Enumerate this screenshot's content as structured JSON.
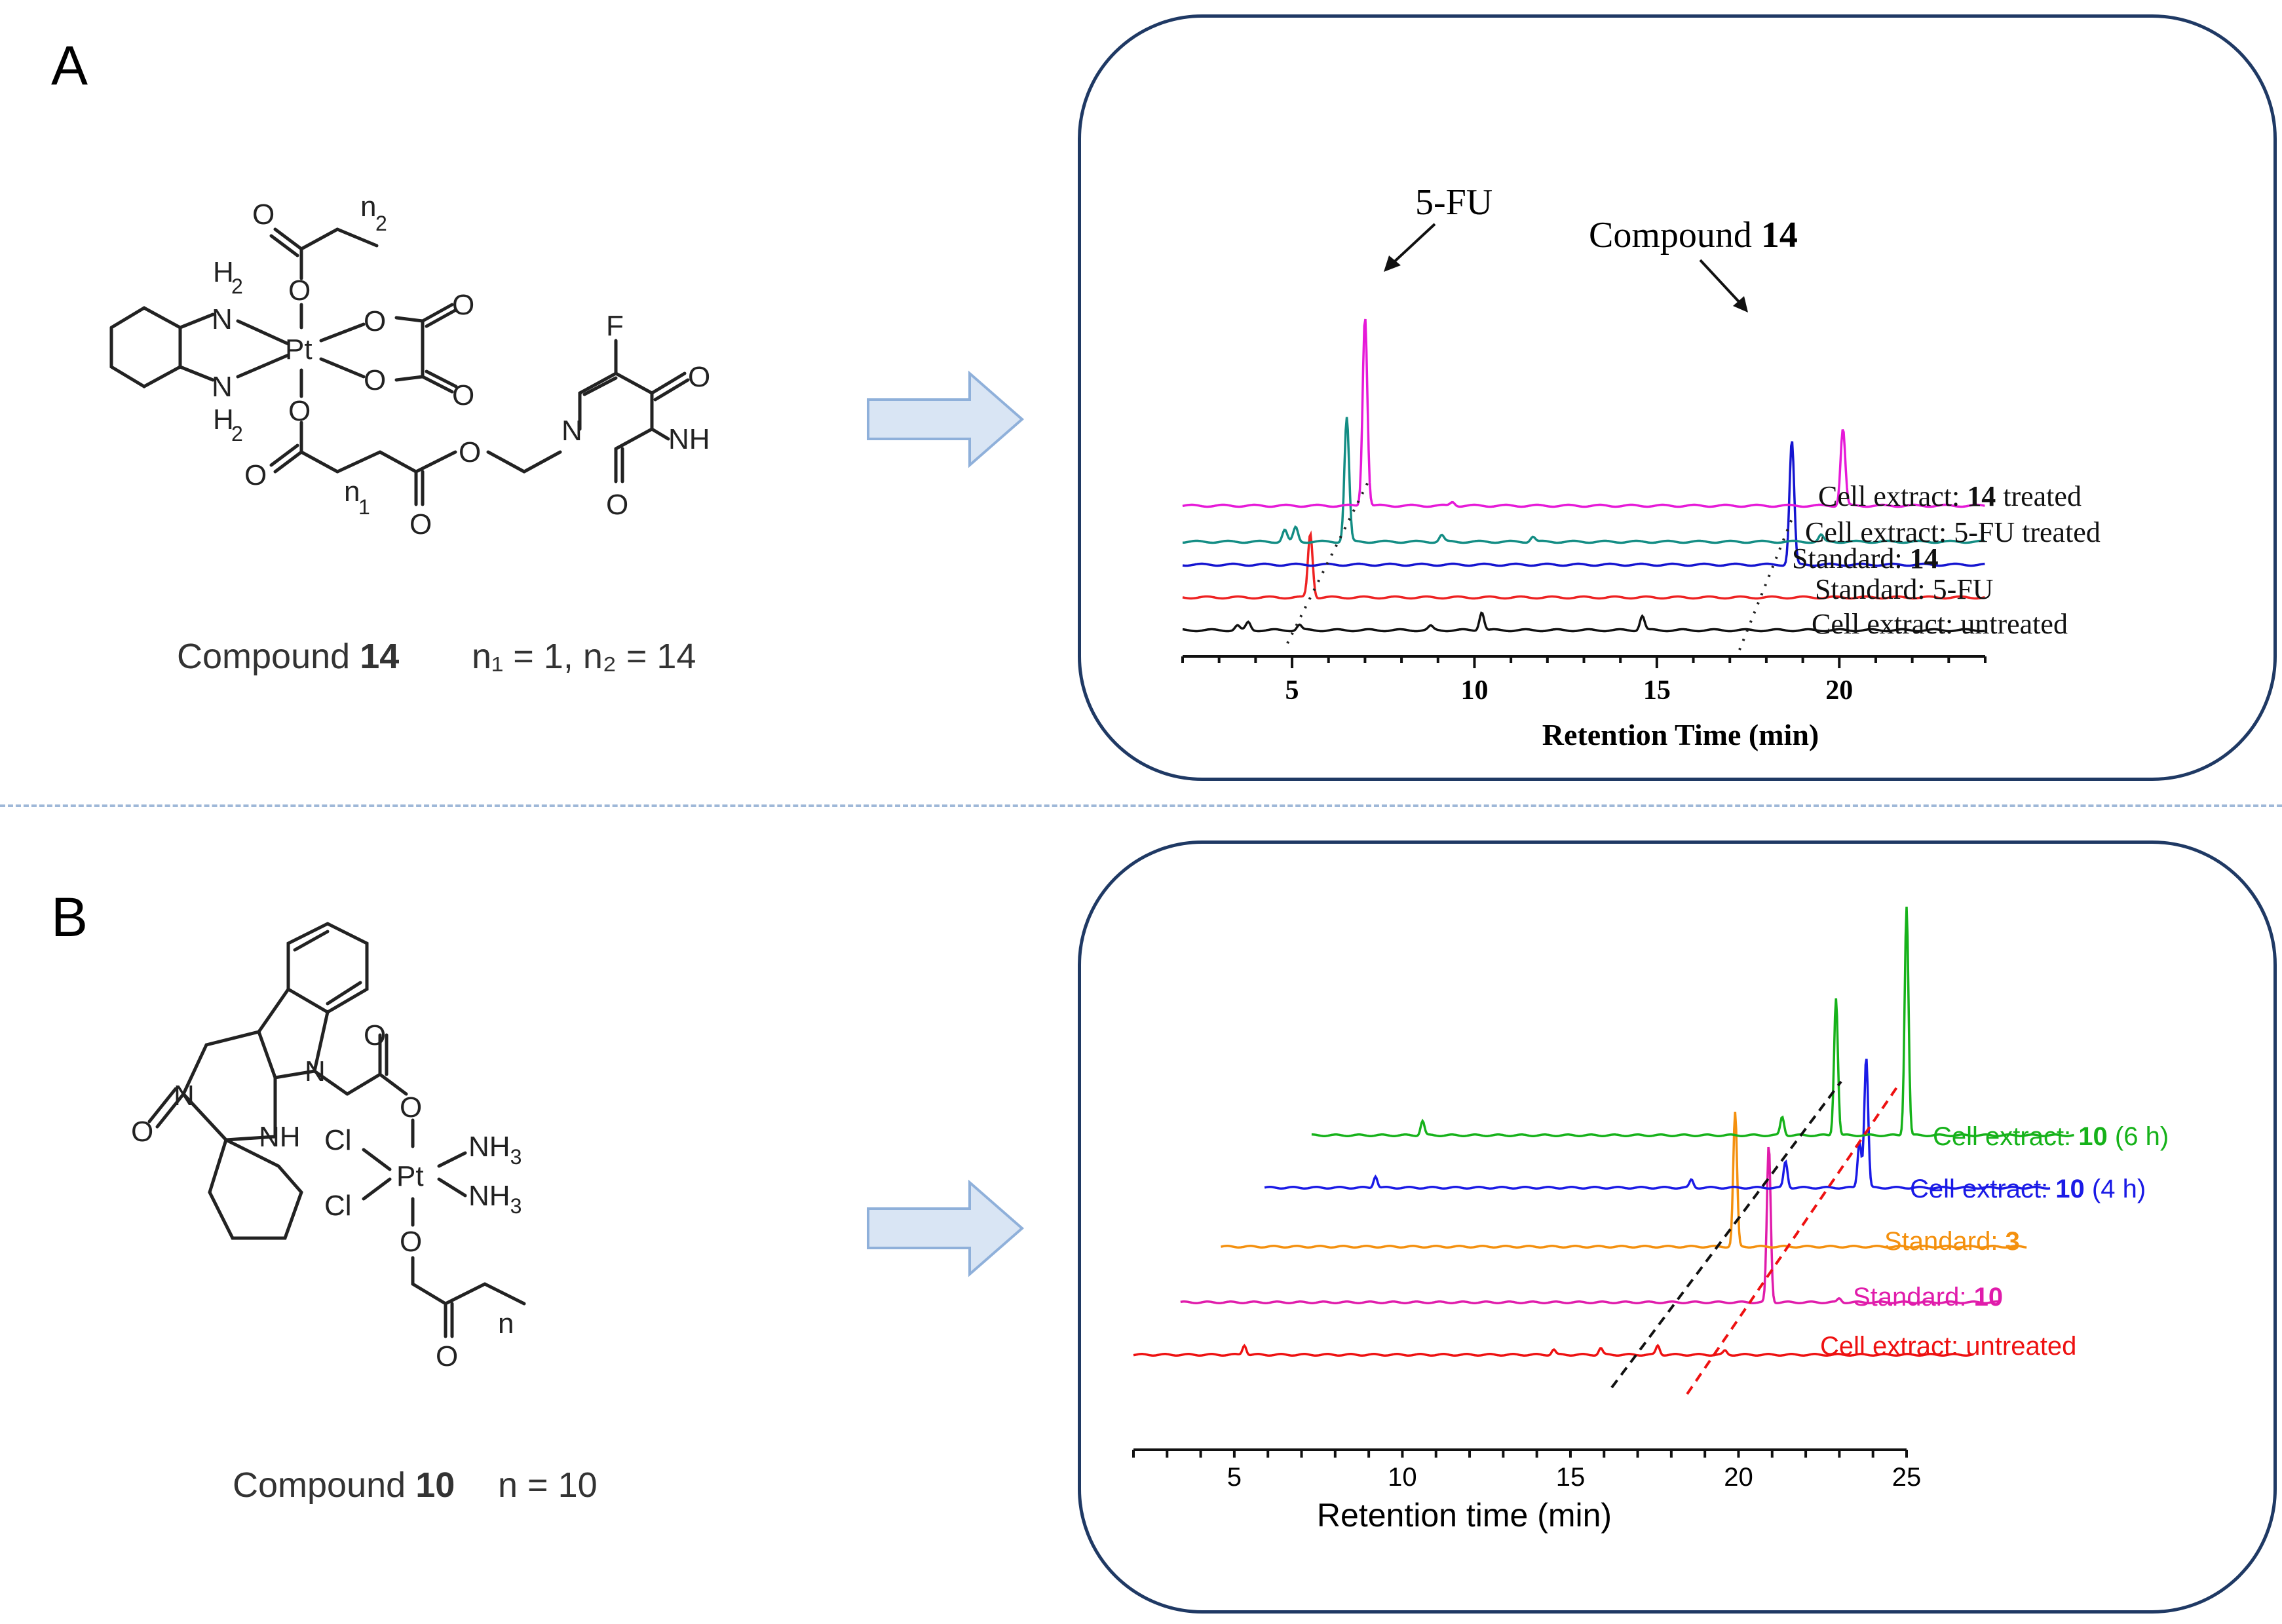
{
  "panels": {
    "a": {
      "letter": "A",
      "compound_label": "Compound",
      "compound_number": "14",
      "compound_params": "n₁ = 1, n₂ = 14",
      "atoms": {
        "o": "O",
        "h2": "H",
        "sub2": "2",
        "n": "N",
        "pt": "Pt",
        "f": "F",
        "nh": "NH",
        "n1": "n",
        "n1sub": "1",
        "n2": "n",
        "n2sub": "2"
      }
    },
    "b": {
      "letter": "B",
      "compound_label": "Compound",
      "compound_number": "10",
      "compound_params": "n = 10",
      "atoms": {
        "o": "O",
        "n": "N",
        "nh": "NH",
        "cl": "Cl",
        "pt": "Pt",
        "nh3": "NH",
        "sub3": "3",
        "n_chain": "n"
      }
    }
  },
  "chart_data": [
    {
      "type": "line",
      "id": "chromatogram-a",
      "xlabel": "Retention Time (min)",
      "ylabel": "",
      "xticks": [
        5,
        10,
        15,
        20
      ],
      "xlim": [
        2,
        24
      ],
      "annotations": {
        "fu": "5-FU",
        "compound": "Compound",
        "compound_number": "14"
      },
      "series": [
        {
          "name": "Cell extract: untreated",
          "label_prefix": "Cell extract: ",
          "label_bold": "",
          "label_suffix": "untreated",
          "color": "#111111",
          "peaks": [
            [
              3.5,
              7
            ],
            [
              3.8,
              12
            ],
            [
              5.2,
              8
            ],
            [
              10.2,
              28
            ],
            [
              14.6,
              22
            ],
            [
              8.8,
              6
            ]
          ]
        },
        {
          "name": "Standard: 5-FU",
          "label_prefix": "Standard: ",
          "label_bold": "",
          "label_suffix": "5-FU",
          "color": "#ee2222",
          "peaks": [
            [
              5.5,
              98
            ]
          ]
        },
        {
          "name": "Standard: 14",
          "label_prefix": "Standard: ",
          "label_bold": "14",
          "label_suffix": "",
          "color": "#1414d0",
          "peaks": [
            [
              18.7,
              190
            ]
          ]
        },
        {
          "name": "Cell extract: 5-FU treated",
          "label_prefix": "Cell extract: ",
          "label_bold": "",
          "label_suffix": "5-FU treated",
          "color": "#138d84",
          "peaks": [
            [
              4.8,
              18
            ],
            [
              5.1,
              22
            ],
            [
              6.5,
              190
            ],
            [
              9.1,
              10
            ],
            [
              11.6,
              8
            ],
            [
              19.5,
              10
            ]
          ]
        },
        {
          "name": "Cell extract: 14 treated",
          "label_prefix": "Cell extract: ",
          "label_bold": "14",
          "label_suffix": " treated",
          "color": "#e619d8",
          "peaks": [
            [
              7.0,
              290
            ],
            [
              9.4,
              6
            ],
            [
              20.1,
              118
            ]
          ]
        }
      ]
    },
    {
      "type": "line",
      "id": "chromatogram-b",
      "xlabel": "Retention time (min)",
      "ylabel": "",
      "xticks": [
        5,
        10,
        15,
        20,
        25
      ],
      "xlim": [
        2,
        25
      ],
      "series": [
        {
          "name": "Cell extract: untreated",
          "label_prefix": "Cell extract: untreated",
          "label_bold": "",
          "label_suffix": "",
          "color": "#ee1111",
          "peaks": [
            [
              5.3,
              15
            ],
            [
              14.5,
              8
            ],
            [
              15.9,
              10
            ],
            [
              17.6,
              14
            ],
            [
              19.6,
              6
            ]
          ]
        },
        {
          "name": "Standard: 10",
          "label_prefix": "Standard: ",
          "label_bold": "10",
          "label_suffix": "",
          "color": "#e01cab",
          "peaks": [
            [
              20.9,
              240
            ],
            [
              23.0,
              6
            ]
          ]
        },
        {
          "name": "Standard: 3",
          "label_prefix": "Standard: ",
          "label_bold": "3",
          "label_suffix": "",
          "color": "#f4900e",
          "peaks": [
            [
              19.9,
              205
            ]
          ]
        },
        {
          "name": "Cell extract: 10 (4 h)",
          "label_prefix": "Cell extract: ",
          "label_bold": "10",
          "label_suffix": " (4 h)",
          "color": "#1a1ae6",
          "peaks": [
            [
              9.2,
              18
            ],
            [
              18.6,
              12
            ],
            [
              21.4,
              40
            ],
            [
              23.6,
              70
            ],
            [
              23.8,
              200
            ]
          ]
        },
        {
          "name": "Cell extract: 10 (6 h)",
          "label_prefix": "Cell extract: ",
          "label_bold": "10",
          "label_suffix": " (6 h)",
          "color": "#16b21a",
          "peaks": [
            [
              10.6,
              22
            ],
            [
              21.3,
              28
            ],
            [
              22.9,
              210
            ],
            [
              25.0,
              350
            ]
          ]
        }
      ]
    }
  ]
}
